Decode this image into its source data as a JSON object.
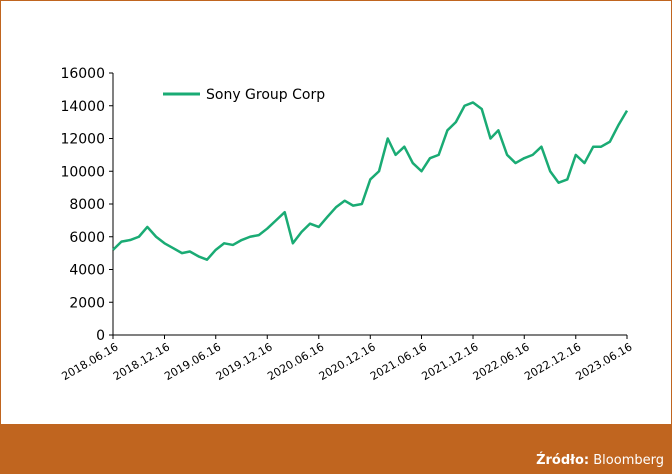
{
  "chart_data": {
    "type": "line",
    "x": [
      "2018.06.16",
      "2018.07.16",
      "2018.08.16",
      "2018.09.16",
      "2018.10.16",
      "2018.11.16",
      "2018.12.16",
      "2019.01.16",
      "2019.02.16",
      "2019.03.16",
      "2019.04.16",
      "2019.05.16",
      "2019.06.16",
      "2019.07.16",
      "2019.08.16",
      "2019.09.16",
      "2019.10.16",
      "2019.11.16",
      "2019.12.16",
      "2020.01.16",
      "2020.02.16",
      "2020.03.16",
      "2020.04.16",
      "2020.05.16",
      "2020.06.16",
      "2020.07.16",
      "2020.08.16",
      "2020.09.16",
      "2020.10.16",
      "2020.11.16",
      "2020.12.16",
      "2021.01.16",
      "2021.02.16",
      "2021.03.16",
      "2021.04.16",
      "2021.05.16",
      "2021.06.16",
      "2021.07.16",
      "2021.08.16",
      "2021.09.16",
      "2021.10.16",
      "2021.11.16",
      "2021.12.16",
      "2022.01.16",
      "2022.02.16",
      "2022.03.16",
      "2022.04.16",
      "2022.05.16",
      "2022.06.16",
      "2022.07.16",
      "2022.08.16",
      "2022.09.16",
      "2022.10.16",
      "2022.11.16",
      "2022.12.16",
      "2023.01.16",
      "2023.02.16",
      "2023.03.16",
      "2023.04.16",
      "2023.05.16",
      "2023.06.16"
    ],
    "series": [
      {
        "name": "Sony Group Corp",
        "color": "#1aab74",
        "values": [
          5200,
          5700,
          5800,
          6000,
          6600,
          6000,
          5600,
          5300,
          5000,
          5100,
          4800,
          4600,
          5200,
          5600,
          5500,
          5800,
          6000,
          6100,
          6500,
          7000,
          7500,
          5600,
          6300,
          6800,
          6600,
          7200,
          7800,
          8200,
          7900,
          8000,
          9500,
          10000,
          12000,
          11000,
          11500,
          10500,
          10000,
          10800,
          11000,
          12500,
          13000,
          14000,
          14200,
          13800,
          12000,
          12500,
          11000,
          10500,
          10800,
          11000,
          11500,
          10000,
          9300,
          9500,
          11000,
          10500,
          11500,
          11500,
          11800,
          12800,
          13700
        ]
      }
    ],
    "xlim": [
      "2018.06.16",
      "2023.06.16"
    ],
    "xticks": [
      "2018.06.16",
      "2018.12.16",
      "2019.06.16",
      "2019.12.16",
      "2020.06.16",
      "2020.12.16",
      "2021.06.16",
      "2021.12.16",
      "2022.06.16",
      "2022.12.16",
      "2023.06.16"
    ],
    "ylim": [
      0,
      16000
    ],
    "yticks": [
      0,
      2000,
      4000,
      6000,
      8000,
      10000,
      12000,
      14000,
      16000
    ],
    "source_label": "Źródło:",
    "source": "Bloomberg"
  }
}
